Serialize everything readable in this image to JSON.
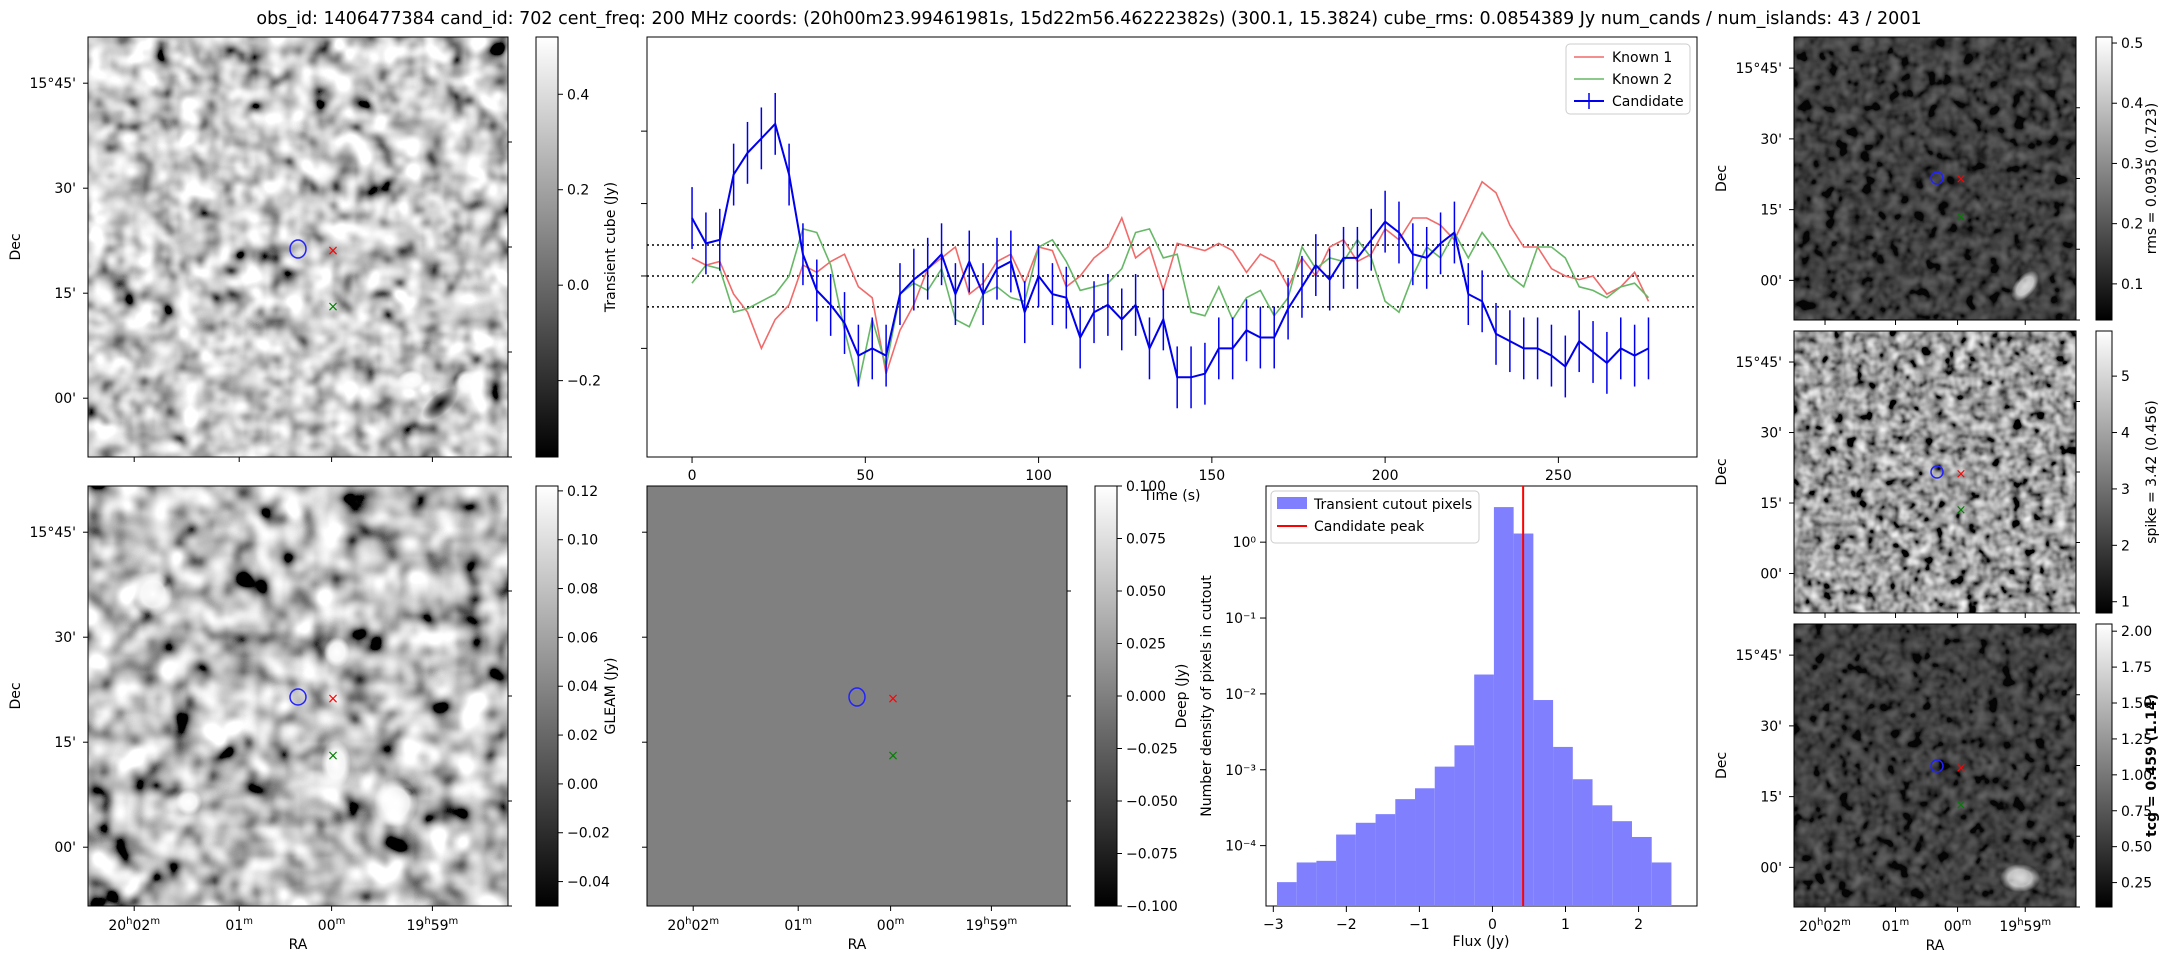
{
  "figure": {
    "title": "obs_id: 1406477384 cand_id: 702 cent_freq: 200 MHz coords: (20h00m23.99461981s, 15d22m56.46222382s) (300.1, 15.3824) cube_rms: 0.0854389 Jy num_cands / num_islands: 43 / 2001"
  },
  "sky_axes": {
    "dec_ticks": [
      "15°45'",
      "30'",
      "15'",
      "00'"
    ],
    "ra_ticks": [
      "20h02m",
      "01m",
      "00m",
      "19h59m"
    ],
    "ra_label": "RA",
    "dec_label": "Dec"
  },
  "colorbars": {
    "transient": {
      "label": "Transient cube (Jy)",
      "ticks": [
        "0.4",
        "0.2",
        "0.0",
        "−0.2"
      ],
      "range": [
        -0.36,
        0.52
      ]
    },
    "gleam": {
      "label": "GLEAM (Jy)",
      "ticks": [
        "0.12",
        "0.10",
        "0.08",
        "0.06",
        "0.04",
        "0.02",
        "0.00",
        "−0.02",
        "−0.04"
      ],
      "range": [
        -0.05,
        0.122
      ]
    },
    "deep": {
      "label": "Deep (Jy)",
      "ticks": [
        "0.100",
        "0.075",
        "0.050",
        "0.025",
        "0.000",
        "−0.025",
        "−0.050",
        "−0.075",
        "−0.100"
      ],
      "range": [
        -0.1,
        0.1
      ]
    },
    "rms": {
      "label": "rms = 0.0935 (0.723)",
      "ticks": [
        "0.5",
        "0.4",
        "0.3",
        "0.2",
        "0.1"
      ],
      "range": [
        0.04,
        0.51
      ]
    },
    "spike": {
      "label": "spike = 3.42 (0.456)",
      "ticks": [
        "5",
        "4",
        "3",
        "2",
        "1"
      ],
      "range": [
        0.8,
        5.8
      ]
    },
    "tcg": {
      "label": "tcg = 0.459 (1.14)",
      "ticks": [
        "2.00",
        "1.75",
        "1.50",
        "1.25",
        "1.00",
        "0.75",
        "0.50",
        "0.25"
      ],
      "range": [
        0.08,
        2.05
      ]
    }
  },
  "chart_data": [
    {
      "type": "line",
      "name": "lightcurve",
      "xlabel": "Time (s)",
      "ylabel": "",
      "xlim": [
        -13,
        290
      ],
      "ylim": [
        -0.5,
        0.66
      ],
      "xticks": [
        0,
        50,
        100,
        150,
        200,
        250
      ],
      "hlines": [
        0.0854,
        0.0,
        -0.0854
      ],
      "legend": [
        "Known 1",
        "Known 2",
        "Candidate"
      ],
      "legend_position": "top-right",
      "colors": {
        "known1": "#f26a6a",
        "known2": "#66b866",
        "candidate": "#0000ee",
        "hline": "#000000"
      },
      "series": [
        {
          "name": "Known 1",
          "x": [
            0,
            4,
            8,
            12,
            16,
            20,
            24,
            28,
            32,
            36,
            40,
            44,
            48,
            52,
            56,
            60,
            64,
            68,
            72,
            76,
            80,
            84,
            88,
            92,
            96,
            100,
            104,
            108,
            112,
            116,
            120,
            124,
            128,
            132,
            136,
            140,
            144,
            148,
            152,
            156,
            160,
            164,
            168,
            172,
            176,
            180,
            184,
            188,
            192,
            196,
            200,
            204,
            208,
            212,
            216,
            220,
            224,
            228,
            232,
            236,
            240,
            244,
            248,
            252,
            256,
            260,
            264,
            268,
            272,
            276
          ],
          "values": [
            0.05,
            0.03,
            0.04,
            -0.05,
            -0.1,
            -0.2,
            -0.12,
            -0.08,
            0.03,
            0.01,
            0.04,
            0.06,
            -0.03,
            -0.06,
            -0.27,
            -0.15,
            -0.08,
            0.02,
            0.05,
            0.08,
            -0.05,
            -0.02,
            0.04,
            0.06,
            -0.02,
            0.08,
            0.07,
            -0.03,
            0.0,
            0.05,
            0.08,
            0.16,
            0.05,
            0.08,
            -0.04,
            0.09,
            0.08,
            0.07,
            0.09,
            0.07,
            0.01,
            0.06,
            0.04,
            -0.03,
            0.05,
            0.0,
            0.08,
            0.1,
            0.04,
            0.06,
            0.13,
            0.1,
            0.16,
            0.16,
            0.14,
            0.1,
            0.18,
            0.26,
            0.23,
            0.14,
            0.08,
            0.08,
            0.02,
            0.0,
            -0.01,
            0.0,
            -0.05,
            -0.03,
            0.01,
            -0.07
          ]
        },
        {
          "name": "Known 2",
          "x": [
            0,
            4,
            8,
            12,
            16,
            20,
            24,
            28,
            32,
            36,
            40,
            44,
            48,
            52,
            56,
            60,
            64,
            68,
            72,
            76,
            80,
            84,
            88,
            92,
            96,
            100,
            104,
            108,
            112,
            116,
            120,
            124,
            128,
            132,
            136,
            140,
            144,
            148,
            152,
            156,
            160,
            164,
            168,
            172,
            176,
            180,
            184,
            188,
            192,
            196,
            200,
            204,
            208,
            212,
            216,
            220,
            224,
            228,
            232,
            236,
            240,
            244,
            248,
            252,
            256,
            260,
            264,
            268,
            272,
            276
          ],
          "values": [
            -0.02,
            0.03,
            0.02,
            -0.1,
            -0.09,
            -0.07,
            -0.05,
            0.0,
            0.13,
            0.12,
            0.03,
            -0.15,
            -0.3,
            -0.12,
            -0.25,
            -0.05,
            -0.02,
            -0.04,
            0.02,
            -0.12,
            -0.14,
            -0.05,
            -0.03,
            -0.06,
            -0.07,
            0.08,
            0.1,
            0.04,
            -0.04,
            -0.03,
            -0.02,
            0.02,
            0.12,
            0.13,
            0.05,
            0.06,
            -0.1,
            -0.11,
            -0.03,
            -0.12,
            -0.06,
            -0.04,
            -0.11,
            -0.06,
            0.08,
            0.02,
            0.05,
            0.04,
            0.1,
            0.05,
            -0.07,
            -0.1,
            0.0,
            0.08,
            0.05,
            0.12,
            0.05,
            0.12,
            0.07,
            0.0,
            -0.03,
            0.08,
            0.08,
            0.05,
            -0.03,
            -0.04,
            -0.06,
            -0.03,
            -0.02,
            -0.06
          ]
        },
        {
          "name": "Candidate",
          "x": [
            0,
            4,
            8,
            12,
            16,
            20,
            24,
            28,
            32,
            36,
            40,
            44,
            48,
            52,
            56,
            60,
            64,
            68,
            72,
            76,
            80,
            84,
            88,
            92,
            96,
            100,
            104,
            108,
            112,
            116,
            120,
            124,
            128,
            132,
            136,
            140,
            144,
            148,
            152,
            156,
            160,
            164,
            168,
            172,
            176,
            180,
            184,
            188,
            192,
            196,
            200,
            204,
            208,
            212,
            216,
            220,
            224,
            228,
            232,
            236,
            240,
            244,
            248,
            252,
            256,
            260,
            264,
            268,
            272,
            276
          ],
          "values": [
            0.16,
            0.09,
            0.1,
            0.28,
            0.34,
            0.38,
            0.42,
            0.28,
            0.06,
            -0.04,
            -0.08,
            -0.13,
            -0.22,
            -0.2,
            -0.22,
            -0.05,
            -0.01,
            0.02,
            0.06,
            -0.05,
            0.04,
            -0.05,
            0.02,
            0.04,
            -0.1,
            0.0,
            -0.05,
            -0.06,
            -0.17,
            -0.1,
            -0.08,
            -0.12,
            -0.08,
            -0.2,
            -0.12,
            -0.28,
            -0.28,
            -0.27,
            -0.2,
            -0.2,
            -0.15,
            -0.17,
            -0.17,
            -0.09,
            -0.03,
            0.03,
            -0.01,
            0.05,
            0.05,
            0.1,
            0.15,
            0.12,
            0.06,
            0.05,
            0.09,
            0.12,
            -0.05,
            -0.07,
            -0.16,
            -0.18,
            -0.2,
            -0.2,
            -0.22,
            -0.25,
            -0.18,
            -0.21,
            -0.24,
            -0.2,
            -0.22,
            -0.2
          ]
        }
      ],
      "errorbar": 0.0854
    },
    {
      "type": "bar",
      "name": "histogram",
      "xlabel": "Flux (Jy)",
      "ylabel": "Number density of pixels in cutout",
      "yscale": "log",
      "xlim": [
        -3.1,
        2.8
      ],
      "ylim": [
        1.6e-05,
        5.5
      ],
      "xticks": [
        -3,
        -2,
        -1,
        0,
        1,
        2
      ],
      "yticks": [
        {
          "value": 1,
          "label": "10⁰"
        },
        {
          "value": 0.1,
          "label": "10⁻¹"
        },
        {
          "value": 0.01,
          "label": "10⁻²"
        },
        {
          "value": 0.001,
          "label": "10⁻³"
        },
        {
          "value": 0.0001,
          "label": "10⁻⁴"
        }
      ],
      "bin_edges": [
        -2.95,
        -2.68,
        -2.41,
        -2.14,
        -1.87,
        -1.6,
        -1.33,
        -1.06,
        -0.79,
        -0.52,
        -0.25,
        0.02,
        0.29,
        0.56,
        0.83,
        1.1,
        1.37,
        1.64,
        1.91,
        2.18,
        2.45
      ],
      "values": [
        3.3e-05,
        6e-05,
        6.3e-05,
        0.00014,
        0.0002,
        0.00026,
        0.00041,
        0.00057,
        0.0011,
        0.0021,
        0.018,
        2.9,
        1.3,
        0.0083,
        0.002,
        0.00075,
        0.00034,
        0.00021,
        0.00013,
        6e-05
      ],
      "candidate_peak": 0.42,
      "legend": [
        "Transient cutout pixels",
        "Candidate peak"
      ],
      "legend_position": "top-left",
      "colors": {
        "bars": "#8080ff",
        "peak": "#ff0000"
      }
    }
  ]
}
